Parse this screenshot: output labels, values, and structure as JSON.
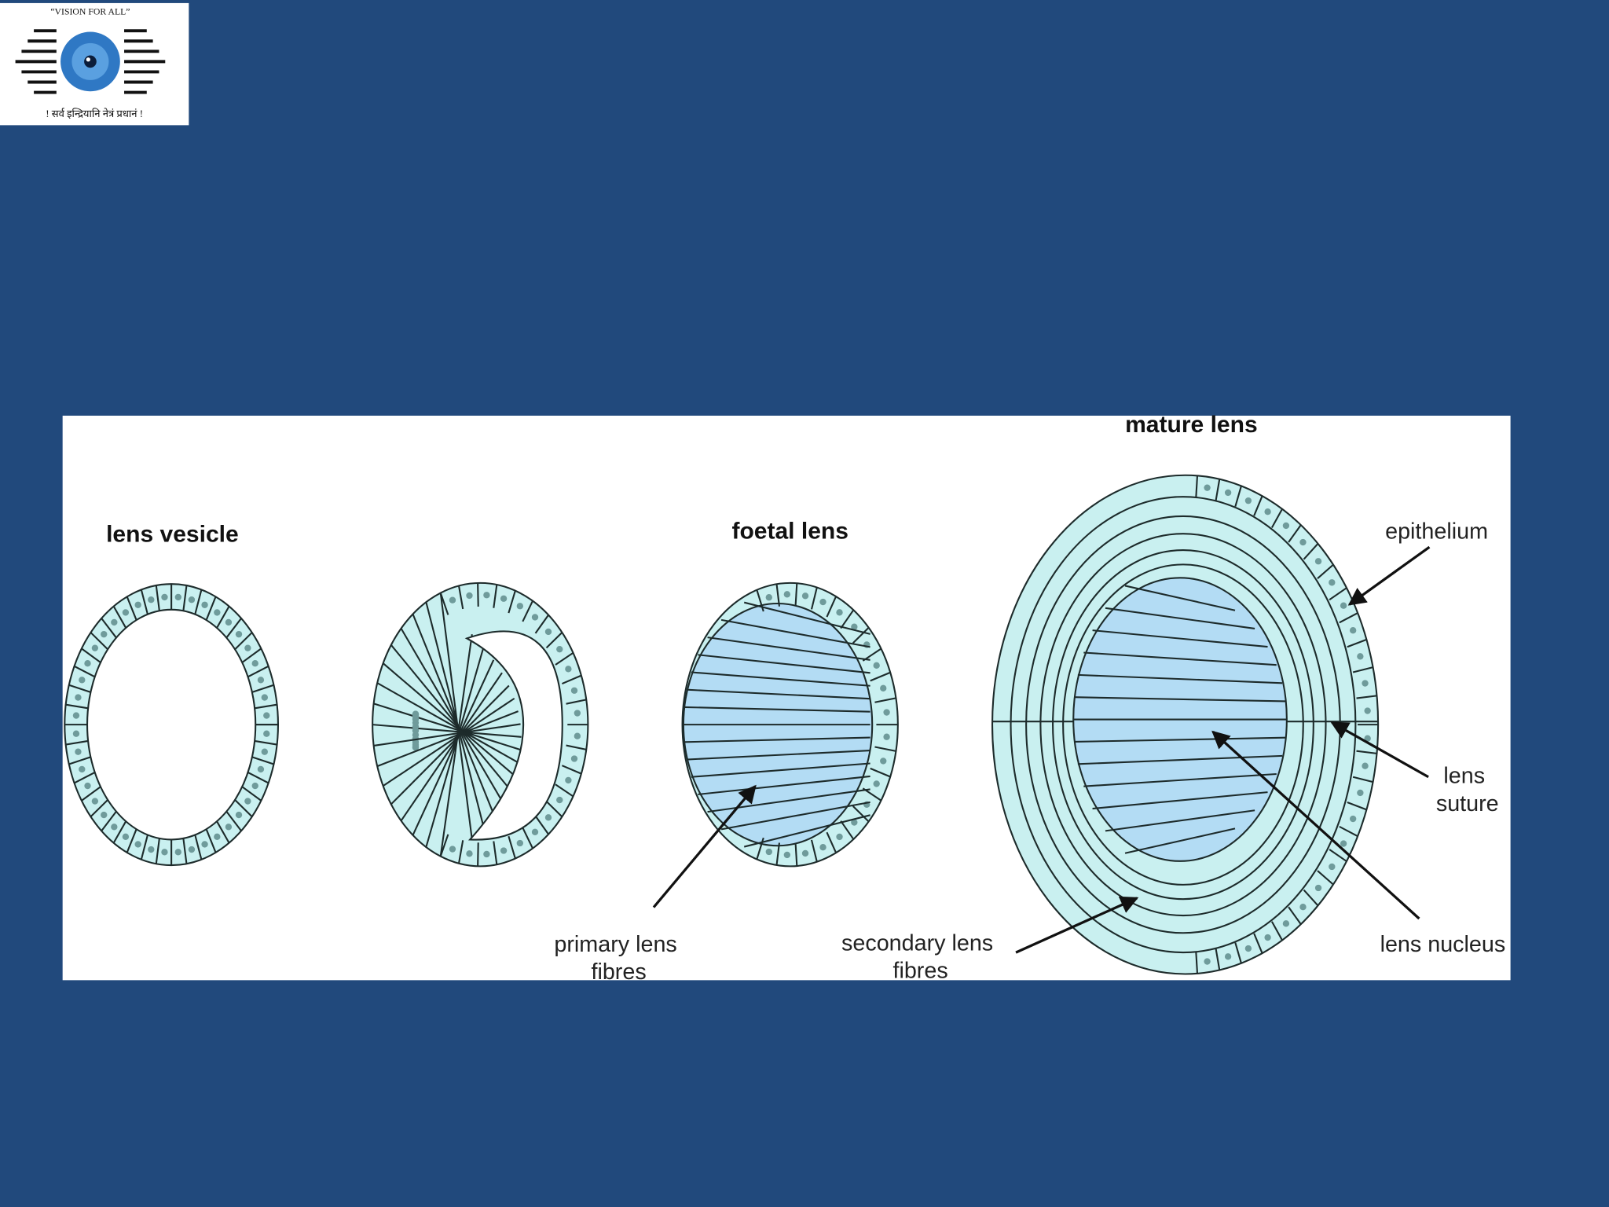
{
  "logo": {
    "tagline": "“VISION FOR ALL”",
    "motto": "! सर्व इन्द्रियानि नेत्रं प्रधानं !"
  },
  "diagram": {
    "stage_titles": [
      "lens vesicle",
      "foetal lens",
      "mature lens"
    ],
    "labels": {
      "epithelium": [
        "epithelium"
      ],
      "lens_suture": [
        "lens",
        "suture"
      ],
      "primary_lens_fibres": [
        "primary lens",
        "fibres"
      ],
      "secondary_lens_fibres": [
        "secondary lens",
        "fibres"
      ],
      "lens_nucleus": [
        "lens nucleus"
      ]
    }
  }
}
